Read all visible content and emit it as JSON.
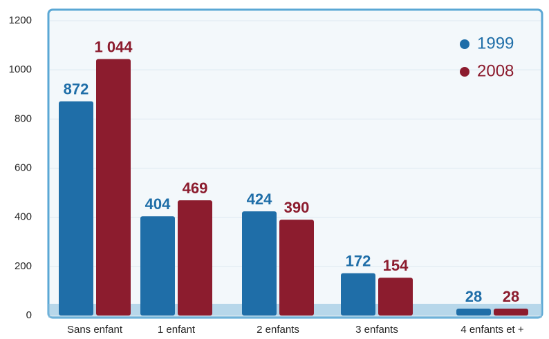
{
  "chart_data": {
    "type": "bar",
    "categories": [
      "Sans enfant",
      "1 enfant",
      "2 enfants",
      "3 enfants",
      "4 enfants et +"
    ],
    "series": [
      {
        "name": "1999",
        "color": "#1f6ea8",
        "values": [
          872,
          404,
          424,
          172,
          28
        ]
      },
      {
        "name": "2008",
        "color": "#8c1c2e",
        "values": [
          1044,
          469,
          390,
          154,
          28
        ],
        "value_labels": [
          "1 044",
          "469",
          "390",
          "154",
          "28"
        ]
      }
    ],
    "ylim": [
      0,
      1200
    ],
    "yticks": [
      0,
      200,
      400,
      600,
      800,
      1000,
      1200
    ],
    "grid": true,
    "legend": "top-right"
  }
}
